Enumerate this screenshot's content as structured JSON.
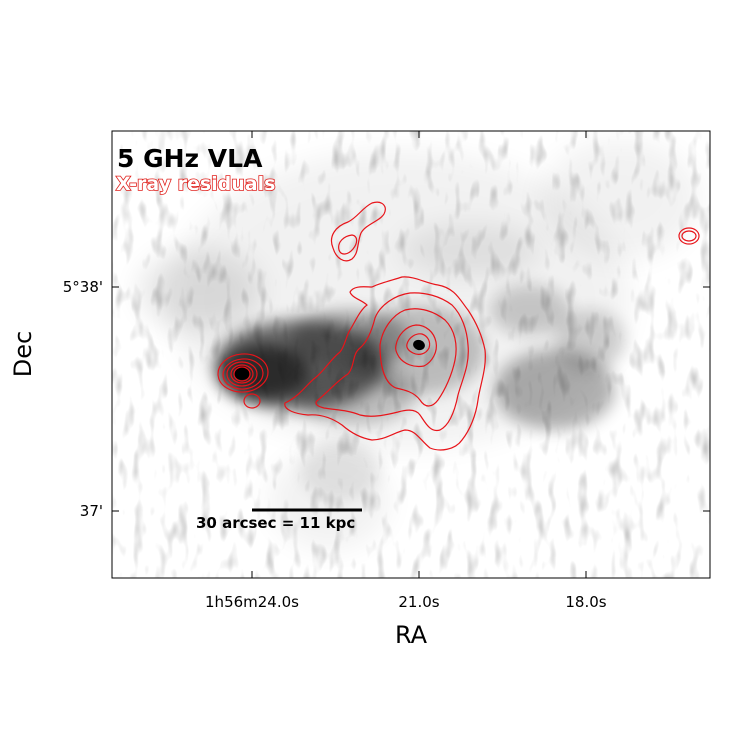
{
  "chart_data": {
    "type": "heatmap",
    "title": "5 GHz VLA",
    "subtitle": "X-ray residuals",
    "xlabel": "RA",
    "ylabel": "Dec",
    "x_ticks": [
      "1h56m24.0s",
      "21.0s",
      "18.0s"
    ],
    "y_ticks": [
      "5°38'",
      "37'"
    ],
    "scale_bar": "30 arcsec = 11 kpc",
    "grid": false,
    "colors": {
      "radio": "#000000",
      "contours": "#e8141a",
      "background": "#ffffff"
    }
  }
}
